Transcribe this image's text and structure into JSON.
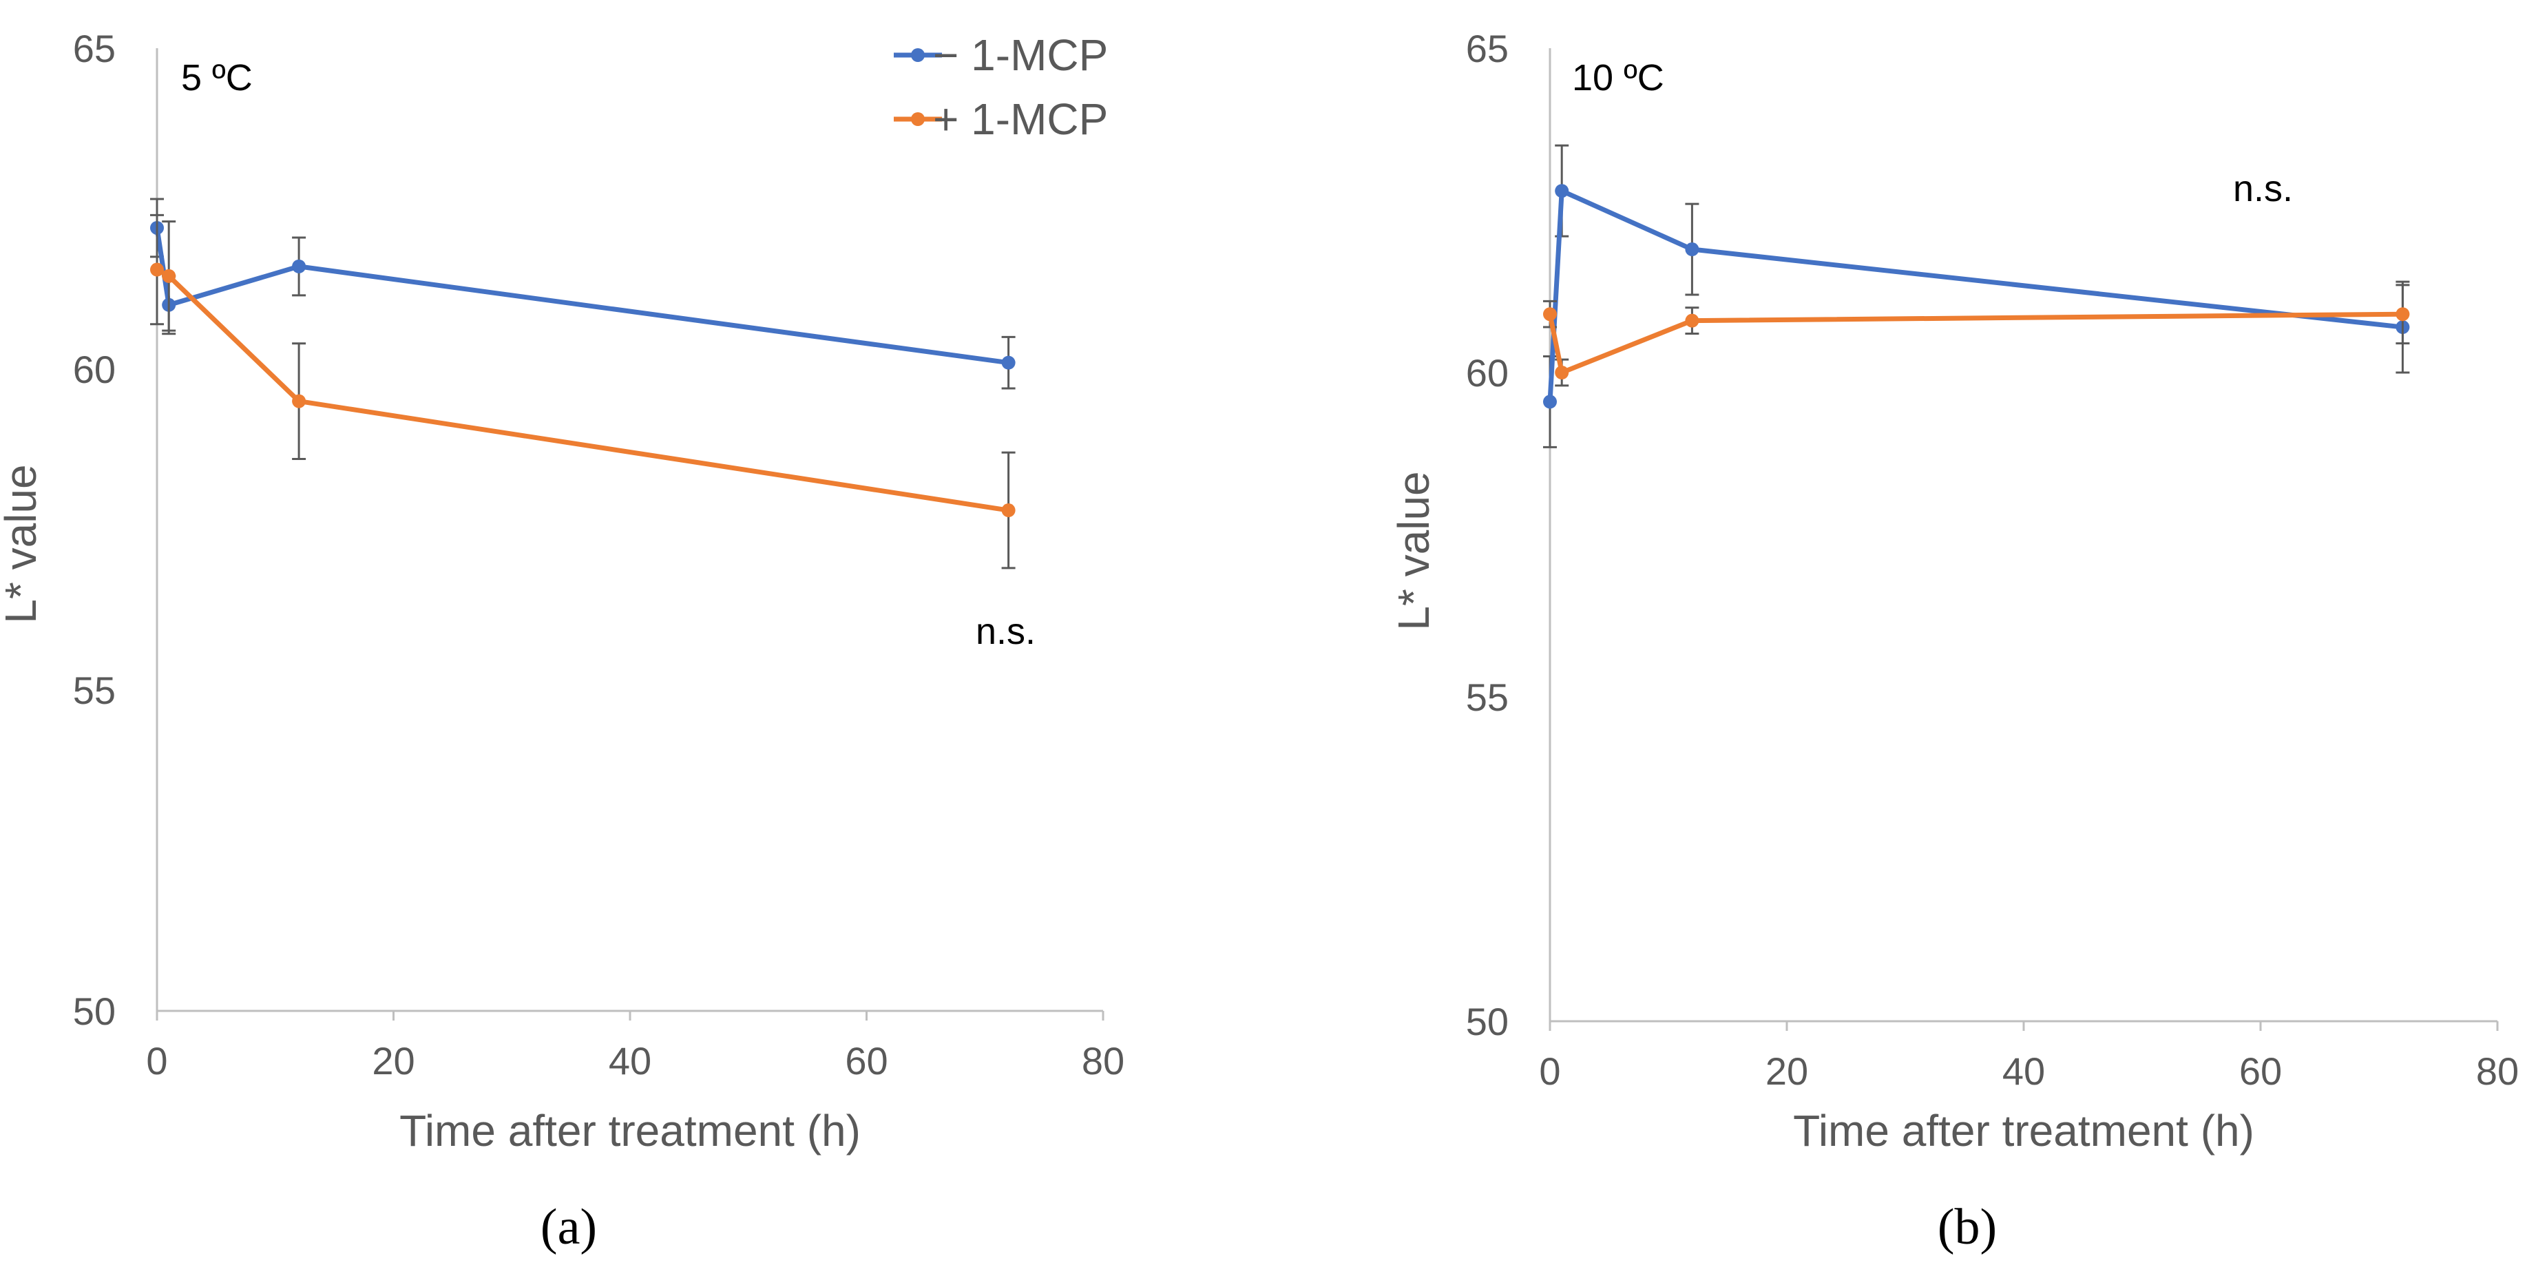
{
  "colors": {
    "minus_mcp": "#4472C4",
    "plus_mcp": "#ED7D31",
    "axis": "#BFBFBF",
    "text": "#595959",
    "error_bar": "#595959"
  },
  "legend": {
    "position": "top-center of panel a",
    "entries": [
      "− 1-MCP",
      "+ 1-MCP"
    ]
  },
  "chart_data": [
    {
      "type": "line",
      "panel_label": "(a)",
      "annotation": "5 ºC",
      "significance": "n.s.",
      "xlabel": "Time after treatment (h)",
      "ylabel": "L* value",
      "xlim": [
        0,
        80
      ],
      "ylim": [
        50,
        65
      ],
      "xticks": [
        "0",
        "20",
        "40",
        "60",
        "80"
      ],
      "yticks": [
        "50",
        "55",
        "60",
        "65"
      ],
      "grid": false,
      "x": [
        0,
        1,
        12,
        72
      ],
      "series": [
        {
          "name": "− 1-MCP",
          "values": [
            62.2,
            61.0,
            61.6,
            60.1
          ],
          "errors": [
            0.45,
            0.45,
            0.45,
            0.4
          ]
        },
        {
          "name": "+ 1-MCP",
          "values": [
            61.55,
            61.45,
            59.5,
            57.8
          ],
          "errors": [
            0.85,
            0.85,
            0.9,
            0.9
          ]
        }
      ]
    },
    {
      "type": "line",
      "panel_label": "(b)",
      "annotation": "10 ºC",
      "significance": "n.s.",
      "xlabel": "Time after treatment (h)",
      "ylabel": "L* value",
      "xlim": [
        0,
        80
      ],
      "ylim": [
        50,
        65
      ],
      "xticks": [
        "0",
        "20",
        "40",
        "60",
        "80"
      ],
      "yticks": [
        "50",
        "55",
        "60",
        "65"
      ],
      "grid": false,
      "x": [
        0,
        1,
        12,
        72
      ],
      "series": [
        {
          "name": "− 1-MCP",
          "values": [
            59.55,
            62.8,
            61.9,
            60.7
          ],
          "errors": [
            0.7,
            0.7,
            0.7,
            0.7
          ]
        },
        {
          "name": "+ 1-MCP",
          "values": [
            60.9,
            60.0,
            60.8,
            60.9
          ],
          "errors": [
            0.2,
            0.2,
            0.2,
            0.45
          ]
        }
      ]
    }
  ]
}
